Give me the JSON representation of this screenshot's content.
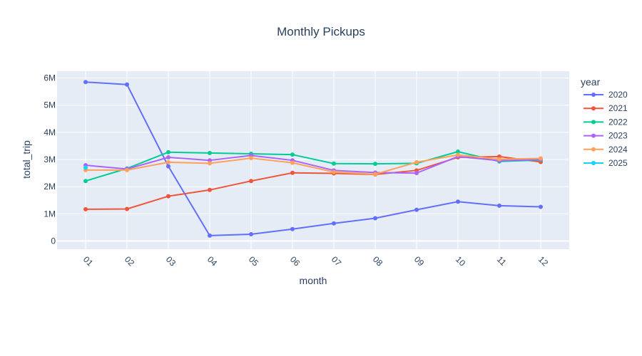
{
  "chart_data": {
    "type": "line",
    "title": "Monthly Pickups",
    "xlabel": "month",
    "ylabel": "total_trip",
    "categories": [
      "01",
      "02",
      "03",
      "04",
      "05",
      "06",
      "07",
      "08",
      "09",
      "10",
      "11",
      "12"
    ],
    "ylim": [
      -300000,
      6250000
    ],
    "yticks": [
      0,
      1000000,
      2000000,
      3000000,
      4000000,
      5000000,
      6000000
    ],
    "ytick_labels": [
      "0",
      "1M",
      "2M",
      "3M",
      "4M",
      "5M",
      "6M"
    ],
    "grid": true,
    "legend_title": "year",
    "legend_position": "right",
    "series": [
      {
        "name": "2020",
        "color": "#636efa",
        "values": [
          5850000,
          5760000,
          2750000,
          200000,
          250000,
          440000,
          650000,
          840000,
          1150000,
          1450000,
          1300000,
          1260000
        ]
      },
      {
        "name": "2021",
        "color": "#ef553b",
        "values": [
          1170000,
          1180000,
          1650000,
          1880000,
          2210000,
          2510000,
          2490000,
          2450000,
          2600000,
          3080000,
          3110000,
          2910000
        ]
      },
      {
        "name": "2022",
        "color": "#00cc96",
        "values": [
          2210000,
          2670000,
          3270000,
          3240000,
          3210000,
          3180000,
          2850000,
          2840000,
          2860000,
          3290000,
          2930000,
          2980000
        ]
      },
      {
        "name": "2023",
        "color": "#ab63fa",
        "values": [
          2790000,
          2650000,
          3080000,
          2970000,
          3150000,
          2970000,
          2600000,
          2520000,
          2500000,
          3110000,
          2960000,
          3000000
        ]
      },
      {
        "name": "2024",
        "color": "#ffa15a",
        "values": [
          2610000,
          2610000,
          2900000,
          2860000,
          3050000,
          2880000,
          2540000,
          2460000,
          2900000,
          3170000,
          3010000,
          3040000
        ]
      },
      {
        "name": "2025",
        "color": "#19d3f3",
        "values": [
          2700000,
          null,
          null,
          null,
          null,
          null,
          null,
          null,
          null,
          null,
          null,
          null
        ]
      }
    ]
  },
  "colors": {
    "plot_background": "#e5ecf6",
    "grid": "#ffffff",
    "text": "#2a3f5f"
  }
}
